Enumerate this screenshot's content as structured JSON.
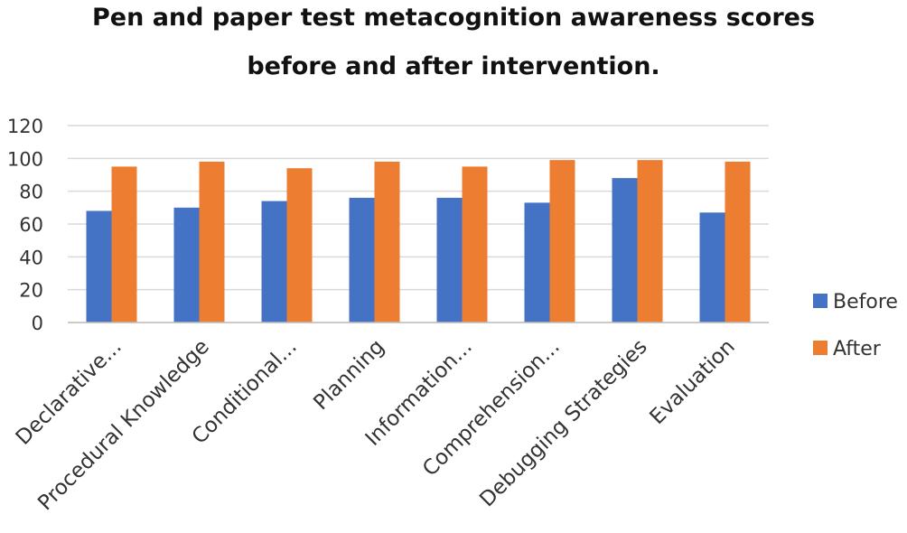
{
  "title_line_1": "Pen and paper test metacognition  awareness scores",
  "title_line_2": "before and after intervention.",
  "chart_data": {
    "type": "bar",
    "title": "Pen and paper test metacognition  awareness scores before and after intervention.",
    "xlabel": "",
    "ylabel": "",
    "ylim": [
      0,
      120
    ],
    "yticks": [
      0,
      20,
      40,
      60,
      80,
      100,
      120
    ],
    "grid": true,
    "legend_position": "right",
    "categories": [
      "Declarative...",
      "Procedural Knowledge",
      "Conditional...",
      "Planning",
      "Information...",
      "Comprehension...",
      "Debugging Strategies",
      "Evaluation"
    ],
    "series": [
      {
        "name": "Before",
        "color": "#4472C4",
        "values": [
          68,
          70,
          74,
          76,
          76,
          73,
          88,
          67
        ]
      },
      {
        "name": "After",
        "color": "#ED7D31",
        "values": [
          95,
          98,
          94,
          98,
          95,
          99,
          99,
          98
        ]
      }
    ]
  }
}
